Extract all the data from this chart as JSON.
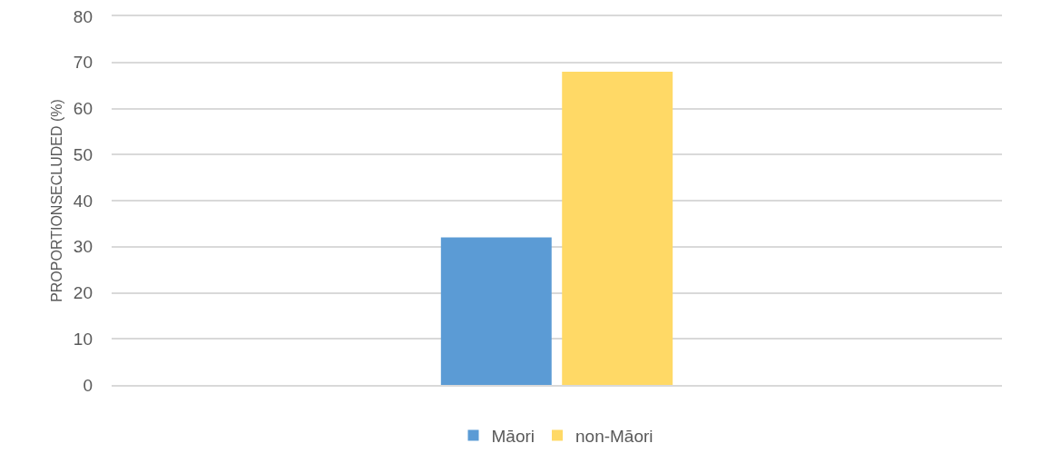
{
  "chart_data": {
    "type": "bar",
    "categories": [
      null
    ],
    "series": [
      {
        "name": "Māori",
        "color": "#5b9bd5",
        "values": [
          32
        ]
      },
      {
        "name": "non-Māori",
        "color": "#ffd966",
        "values": [
          68
        ]
      }
    ],
    "ylabel": "PROPORTIONSECLUDED (%)",
    "ylim": [
      0,
      80
    ],
    "yticks": [
      0,
      10,
      20,
      30,
      40,
      50,
      60,
      70,
      80
    ],
    "grid": "y",
    "legend": "bottom"
  }
}
